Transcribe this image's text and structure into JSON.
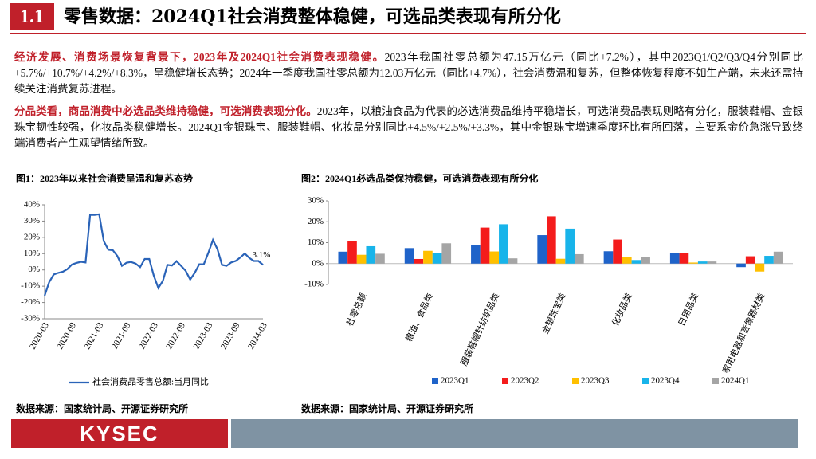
{
  "header": {
    "number": "1.1",
    "title": "零售数据：2024Q1社会消费整体稳健，可选品类表现有所分化"
  },
  "paragraphs": [
    {
      "bold": "经济发展、消费场景恢复背景下，2023年及2024Q1社会消费表现稳健。",
      "text": "2023年我国社零总额为47.15万亿元（同比+7.2%），其中2023Q1/Q2/Q3/Q4分别同比+5.7%/+10.7%/+4.2%/+8.3%，呈稳健增长态势；2024年一季度我国社零总额为12.03万亿元（同比+4.7%），社会消费温和复苏，但整体恢复程度不如生产端，未来还需持续关注消费复苏进程。"
    },
    {
      "bold": "分品类看，商品消费中必选品类维持稳健，可选消费表现分化。",
      "text": "2023年，以粮油食品为代表的必选消费品维持平稳增长，可选消费品表现则略有分化，服装鞋帽、金银珠宝韧性较强，化妆品类稳健增长。2024Q1金银珠宝、服装鞋帽、化妆品分别同比+4.5%/+2.5%/+3.3%，其中金银珠宝增速季度环比有所回落，主要系金价急涨导致终端消费者产生观望情绪所致。"
    }
  ],
  "chart_data": [
    {
      "type": "line",
      "title": "图1：2023年以来社会消费呈温和复苏态势",
      "categories": [
        "2020-03",
        null,
        null,
        null,
        null,
        null,
        "2020-09",
        null,
        null,
        null,
        null,
        null,
        "2021-03",
        null,
        null,
        null,
        null,
        null,
        "2021-09",
        null,
        null,
        null,
        null,
        null,
        "2022-03",
        null,
        null,
        null,
        null,
        null,
        "2022-09",
        null,
        null,
        null,
        null,
        null,
        "2023-03",
        null,
        null,
        null,
        null,
        null,
        "2023-09",
        null,
        null,
        null,
        null,
        null,
        "2024-03"
      ],
      "series": [
        {
          "name": "社会消费品零售总额:当月同比",
          "color": "#2a63b8",
          "values": [
            -15.8,
            -7.5,
            -2.8,
            -1.8,
            -1.1,
            0.5,
            3.3,
            4.3,
            5.0,
            4.6,
            33.8,
            33.8,
            34.2,
            17.7,
            12.4,
            12.1,
            8.5,
            2.5,
            4.4,
            4.9,
            3.9,
            1.7,
            6.7,
            6.7,
            -3.5,
            -11.1,
            -6.7,
            3.1,
            2.7,
            5.4,
            2.5,
            -0.5,
            -5.9,
            -1.8,
            3.5,
            3.5,
            10.6,
            18.4,
            12.7,
            3.1,
            2.5,
            4.6,
            5.5,
            7.6,
            10.1,
            7.4,
            5.5,
            5.5,
            3.1
          ],
          "value_labels": [
            null,
            null,
            null,
            null,
            null,
            null,
            null,
            null,
            null,
            null,
            null,
            null,
            null,
            null,
            null,
            null,
            null,
            null,
            null,
            null,
            null,
            null,
            null,
            null,
            null,
            null,
            null,
            null,
            null,
            null,
            null,
            null,
            null,
            null,
            null,
            null,
            null,
            null,
            null,
            null,
            null,
            null,
            null,
            null,
            null,
            null,
            null,
            null,
            "3.1%"
          ]
        }
      ],
      "ylim": [
        -30,
        40
      ],
      "yticks": [
        {
          "value": -30,
          "label": "-30%"
        },
        {
          "value": -20,
          "label": "-20%"
        },
        {
          "value": -10,
          "label": "-10%"
        },
        {
          "value": 0,
          "label": "0%"
        },
        {
          "value": 10,
          "label": "10%"
        },
        {
          "value": 20,
          "label": "20%"
        },
        {
          "value": 30,
          "label": "30%"
        },
        {
          "value": 40,
          "label": "40%"
        }
      ],
      "grid": false,
      "legend": "bottom"
    },
    {
      "type": "bar",
      "title": "图2：2024Q1必选品类保持稳健，可选消费表现有所分化",
      "categories": [
        "社零总额",
        "粮油、食品类",
        "服装鞋帽针纺织品类",
        "金银珠宝类",
        "化妆品类",
        "日用品类",
        "家用电器和音像器材类"
      ],
      "series": [
        {
          "name": "2023Q1",
          "color": "#1f63c9",
          "values": [
            5.7,
            7.4,
            9.0,
            13.6,
            5.9,
            5.0,
            -1.7
          ]
        },
        {
          "name": "2023Q2",
          "color": "#f41c1c",
          "values": [
            10.7,
            2.2,
            17.2,
            22.6,
            11.5,
            4.9,
            3.5
          ]
        },
        {
          "name": "2023Q3",
          "color": "#ffc000",
          "values": [
            4.2,
            6.1,
            5.8,
            2.3,
            3.0,
            0.5,
            -3.8
          ]
        },
        {
          "name": "2023Q4",
          "color": "#18b4ea",
          "values": [
            8.3,
            5.0,
            18.8,
            16.7,
            1.7,
            1.0,
            3.7
          ]
        },
        {
          "name": "2024Q1",
          "color": "#a5a5a5",
          "values": [
            4.7,
            9.7,
            2.5,
            4.5,
            3.3,
            1.0,
            5.7
          ]
        }
      ],
      "ylim": [
        -10,
        30
      ],
      "yticks": [
        {
          "value": -10,
          "label": "-10%"
        },
        {
          "value": 0,
          "label": "0%"
        },
        {
          "value": 10,
          "label": "10%"
        },
        {
          "value": 20,
          "label": "20%"
        },
        {
          "value": 30,
          "label": "30%"
        }
      ],
      "grid": false,
      "legend": "bottom"
    }
  ],
  "sources": [
    "数据来源：国家统计局、开源证券研究所",
    "数据来源：国家统计局、开源证券研究所"
  ],
  "logo": "KYSEC"
}
